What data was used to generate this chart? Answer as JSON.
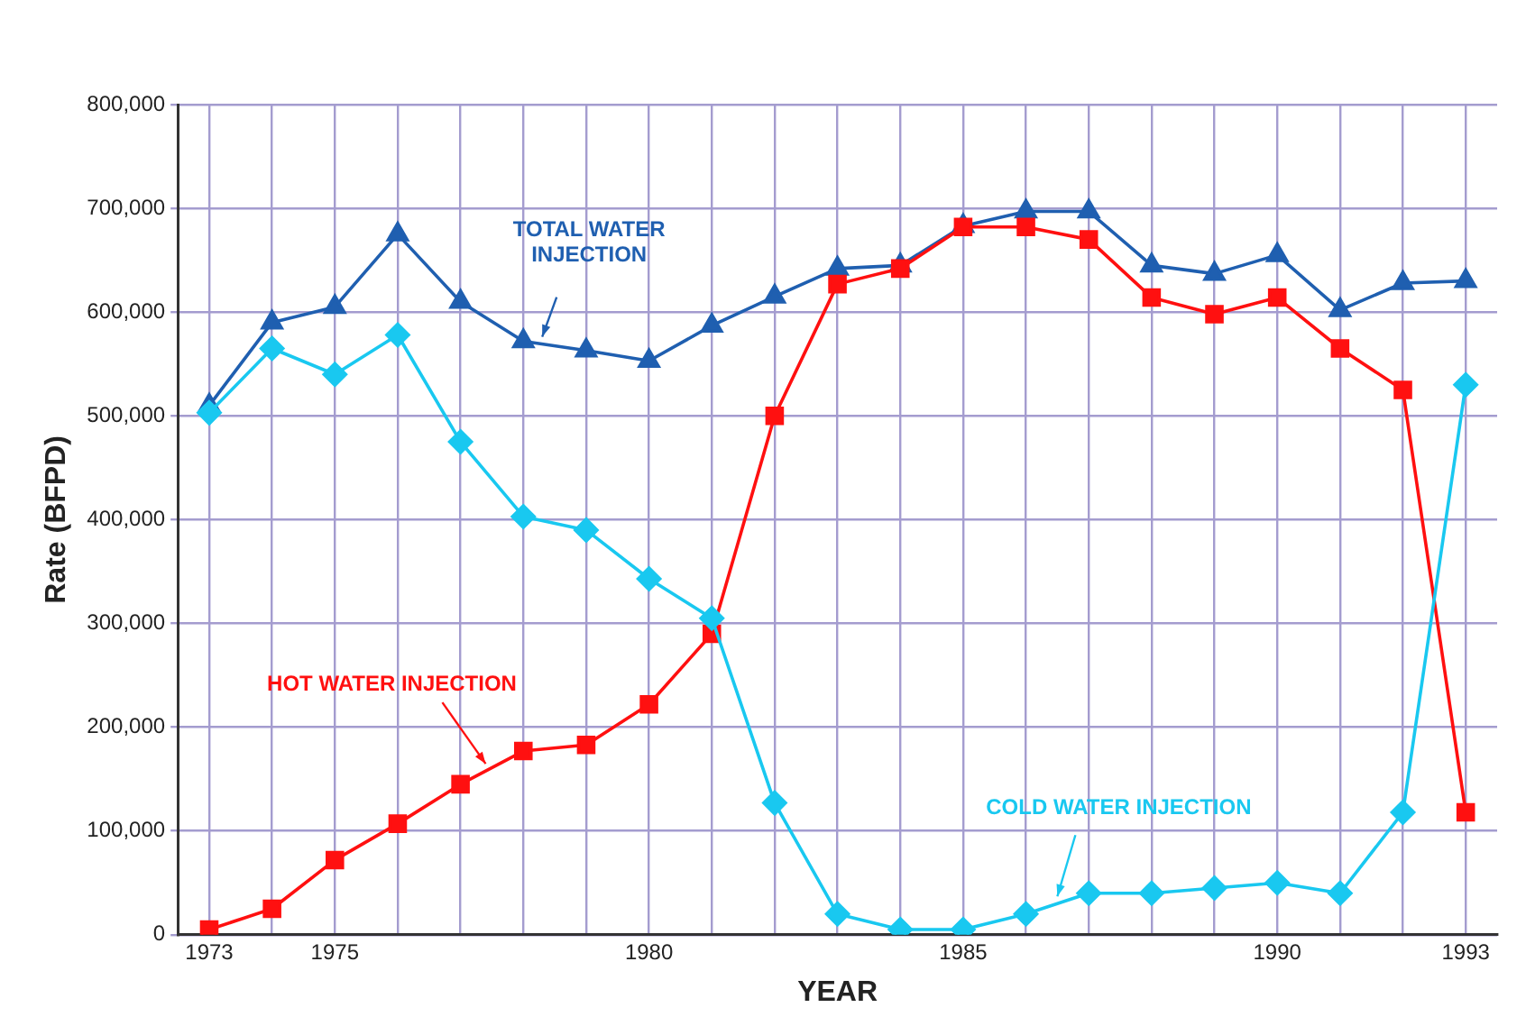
{
  "chart_data": {
    "type": "line",
    "ylabel": "Rate (BFPD)",
    "xlabel": "YEAR",
    "x": [
      1973,
      1974,
      1975,
      1976,
      1977,
      1978,
      1979,
      1980,
      1981,
      1982,
      1983,
      1984,
      1985,
      1986,
      1987,
      1988,
      1989,
      1990,
      1991,
      1992,
      1993
    ],
    "series": [
      {
        "name": "TOTAL WATER INJECTION",
        "color": "#1f5fb0",
        "marker": "triangle",
        "values": [
          510000,
          590000,
          605000,
          675000,
          610000,
          572000,
          563000,
          553000,
          587000,
          615000,
          642000,
          645000,
          683000,
          697000,
          697000,
          645000,
          637000,
          655000,
          602000,
          628000,
          630000
        ]
      },
      {
        "name": "HOT WATER INJECTION",
        "color": "#ff1010",
        "marker": "square",
        "values": [
          5000,
          25000,
          72000,
          107000,
          145000,
          177000,
          183000,
          222000,
          290000,
          500000,
          627000,
          642000,
          682000,
          682000,
          670000,
          614000,
          598000,
          614000,
          565000,
          525000,
          118000
        ]
      },
      {
        "name": "COLD WATER INJECTION",
        "color": "#19c8f0",
        "marker": "diamond",
        "values": [
          503000,
          565000,
          540000,
          578000,
          475000,
          403000,
          390000,
          343000,
          305000,
          127000,
          20000,
          5000,
          5000,
          20000,
          40000,
          40000,
          45000,
          50000,
          40000,
          118000,
          530000
        ]
      }
    ],
    "xlim": [
      1972.5,
      1993.5
    ],
    "xticks": [
      1973,
      {
        "value": 1974,
        "label": null
      },
      1975,
      {
        "value": 1976,
        "label": null
      },
      {
        "value": 1977,
        "label": null
      },
      {
        "value": 1978,
        "label": null
      },
      {
        "value": 1979,
        "label": null
      },
      1980,
      {
        "value": 1981,
        "label": null
      },
      {
        "value": 1982,
        "label": null
      },
      {
        "value": 1983,
        "label": null
      },
      {
        "value": 1984,
        "label": null
      },
      1985,
      {
        "value": 1986,
        "label": null
      },
      {
        "value": 1987,
        "label": null
      },
      {
        "value": 1988,
        "label": null
      },
      {
        "value": 1989,
        "label": null
      },
      1990,
      {
        "value": 1991,
        "label": null
      },
      {
        "value": 1992,
        "label": null
      },
      1993
    ],
    "ylim": [
      0,
      800000
    ],
    "yticks": [
      0,
      {
        "value": 100000,
        "label": "100,000"
      },
      {
        "value": 200000,
        "label": "200,000"
      },
      {
        "value": 300000,
        "label": "300,000"
      },
      {
        "value": 400000,
        "label": "400,000"
      },
      {
        "value": 500000,
        "label": "500,000"
      },
      {
        "value": 600000,
        "label": "600,000"
      },
      {
        "value": 700000,
        "label": "700,000"
      },
      {
        "value": 800000,
        "label": "800,000"
      }
    ],
    "grid": true,
    "legend": false,
    "line_style": "solid"
  }
}
